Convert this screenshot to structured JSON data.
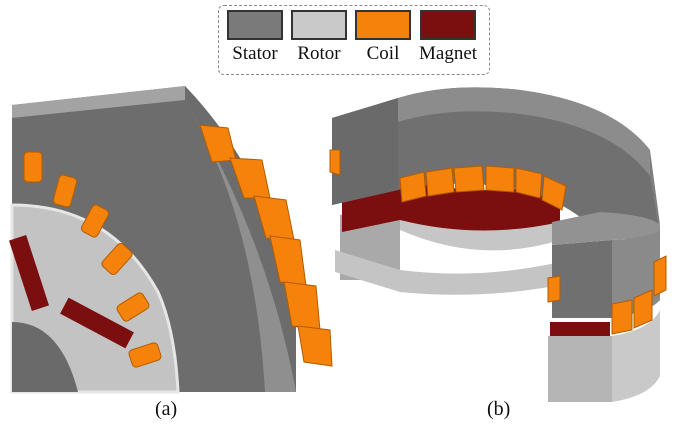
{
  "legend": {
    "items": [
      {
        "label": "Stator",
        "color": "#7a7a7a"
      },
      {
        "label": "Rotor",
        "color": "#c9c9c9"
      },
      {
        "label": "Coil",
        "color": "#f5820a"
      },
      {
        "label": "Magnet",
        "color": "#7b0f0f"
      }
    ]
  },
  "captions": {
    "a": "(a)",
    "b": "(b)"
  },
  "colors": {
    "stator_dark": "#5f5f5f",
    "stator_top": "#7d7d7d",
    "rotor": "#c2c2c2",
    "coil": "#f5820a",
    "magnet": "#7b0f0f"
  }
}
